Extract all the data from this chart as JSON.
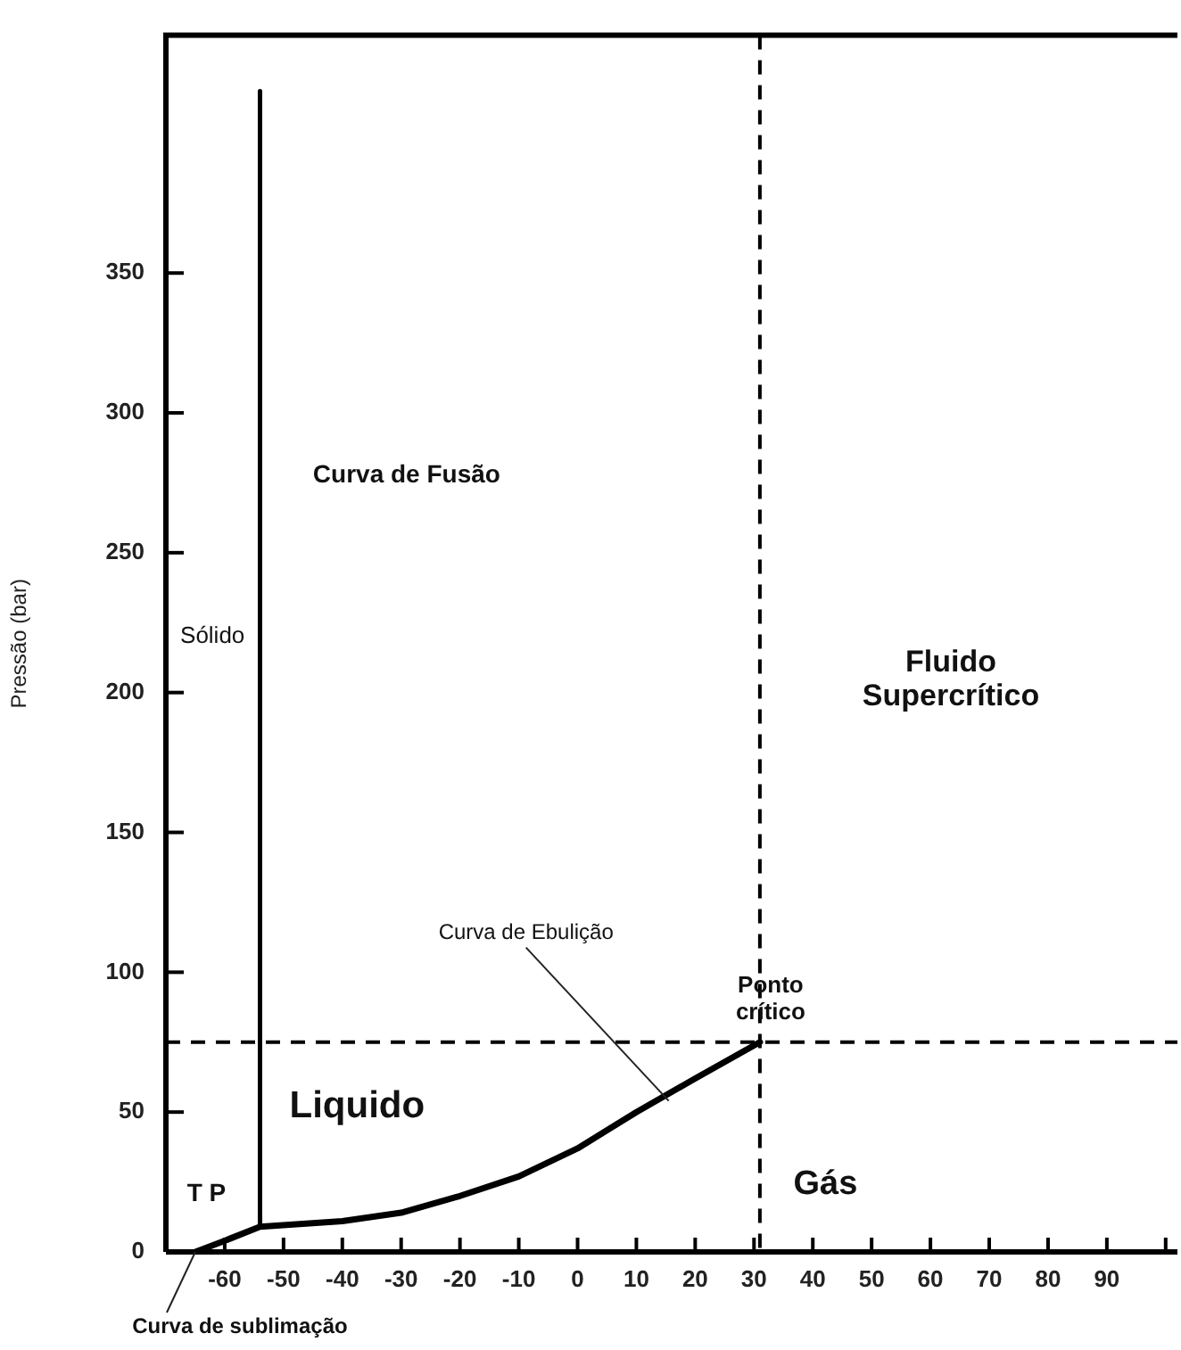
{
  "chart_data": {
    "type": "line",
    "ylabel": "Pressão (bar)",
    "xlim": [
      -70,
      102
    ],
    "xticks": [
      -60,
      -50,
      -40,
      -30,
      -20,
      -10,
      0,
      10,
      20,
      30,
      40,
      50,
      60,
      70,
      80,
      90,
      {
        "value": 100,
        "label": null
      }
    ],
    "ylim": [
      0,
      435
    ],
    "yticks": [
      0,
      50,
      100,
      150,
      200,
      250,
      300,
      350
    ],
    "series": [
      {
        "color": "#000000",
        "x": [
          -65,
          -60,
          -54,
          -40,
          -30,
          -20,
          -10,
          0,
          10,
          20,
          31
        ],
        "values": [
          0,
          4,
          9,
          11,
          14,
          20,
          27,
          37,
          50,
          62,
          75
        ]
      },
      {
        "color": "#000000",
        "x": [
          -54,
          -54
        ],
        "values": [
          9,
          415
        ]
      }
    ],
    "ref_lines": [
      {
        "axis": "x",
        "value": 31,
        "line_style": "dashed",
        "color": "#000000"
      },
      {
        "axis": "y",
        "value": 75,
        "line_style": "dashed",
        "color": "#000000"
      }
    ],
    "annotations": [
      "Curva de Fusão",
      "Sólido",
      "Fluido Supercrítico",
      "Liquido",
      "Gás",
      {
        "text": "T P",
        "x": -54,
        "y": 9
      },
      {
        "text": "Ponto crítico",
        "x": 31,
        "y": 75
      },
      {
        "text": "Curva de Ebulição",
        "x": 15.5,
        "y": 54
      },
      {
        "text": "Curva de sublimação",
        "x": -65,
        "y": 0
      }
    ],
    "grid": false,
    "legend": false,
    "line_style": "solid",
    "marker": "none"
  }
}
